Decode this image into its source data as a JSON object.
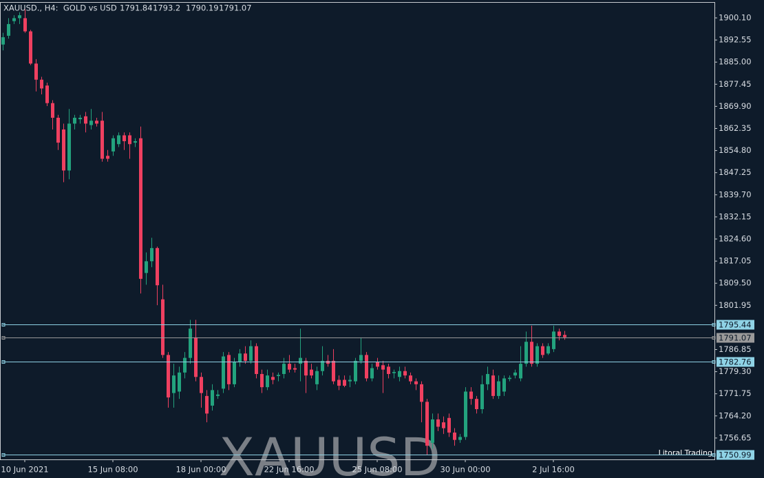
{
  "chart_data": {
    "type": "candlestick",
    "title": "XAUUSD., H4:  GOLD vs USD",
    "watermark": "XAUUSD",
    "credit": "Litoral Trading",
    "up_color": "#23a37e",
    "down_color": "#ef4060",
    "categories": [
      null,
      null,
      null,
      null,
      "10 Jun 2021",
      null,
      null,
      null,
      null,
      null,
      null,
      null,
      null,
      null,
      null,
      null,
      null,
      null,
      null,
      null,
      "15 Jun 08:00",
      null,
      null,
      null,
      null,
      null,
      null,
      null,
      null,
      null,
      null,
      null,
      null,
      null,
      null,
      null,
      "18 Jun 00:00",
      null,
      null,
      null,
      null,
      null,
      null,
      null,
      null,
      null,
      null,
      null,
      null,
      null,
      null,
      null,
      "22 Jun 16:00",
      null,
      null,
      null,
      null,
      null,
      null,
      null,
      null,
      null,
      null,
      null,
      null,
      null,
      null,
      null,
      "25 Jun 08:00",
      null,
      null,
      null,
      null,
      null,
      null,
      null,
      null,
      null,
      null,
      null,
      null,
      null,
      null,
      null,
      "30 Jun 00:00",
      null,
      null,
      null,
      null,
      null,
      null,
      null,
      null,
      null,
      null,
      null,
      null,
      null,
      null,
      null,
      "2 Jul 16:00",
      null,
      null
    ],
    "series": [
      {
        "open": [
          1891,
          1894,
          1899,
          1900,
          1900,
          1895.5,
          1884.5,
          1879,
          1877,
          1871,
          1866,
          1862,
          1848,
          1864,
          1865.5,
          1866.5,
          1863.5,
          1865,
          1865,
          1853,
          1854.5,
          1857,
          1860,
          1860,
          1857.5,
          1859,
          1813,
          1817,
          1821.5,
          1804,
          1785,
          1772,
          1772.5,
          1779,
          1784,
          1791,
          1777.5,
          1771,
          1767.7,
          1771,
          1773.5,
          1785,
          1775,
          1782.5,
          1785.5,
          1783,
          1788,
          1778.5,
          1774,
          1777.5,
          1777.8,
          1778.5,
          1782,
          1780.5,
          1782,
          1783,
          1780,
          1775,
          1779.5,
          1783,
          1783,
          1776.5,
          1776.5,
          1776,
          1776,
          1783,
          1785,
          1777,
          1782.5,
          1781.5,
          1781,
          1778.8,
          1777.5,
          1779.5,
          1778,
          1776,
          1775,
          1769,
          1755,
          1763,
          1762,
          1763.5,
          1758.5,
          1756,
          1757,
          1772.5,
          1770,
          1766.5,
          1775,
          1778,
          1771,
          1772.5,
          1776.8,
          1778,
          1777,
          1782,
          1789.5,
          1782,
          1788,
          1785.5,
          1787,
          1793,
          1791.84
        ],
        "high": [
          1895,
          1900,
          1901,
          1902,
          1903,
          1896,
          1886,
          1880,
          1878,
          1872,
          1867,
          1864,
          1869,
          1867,
          1867,
          1868,
          1869,
          1866,
          1868,
          1855,
          1860,
          1861,
          1861,
          1861,
          1859,
          1863,
          1820,
          1825,
          1822,
          1809,
          1786,
          1782,
          1781,
          1786,
          1797,
          1797,
          1779,
          1773,
          1775,
          1773,
          1786,
          1786,
          1784,
          1787,
          1788,
          1790,
          1789,
          1780,
          1780,
          1779,
          1779,
          1784,
          1785,
          1782,
          1794,
          1784,
          1782,
          1781,
          1788,
          1785,
          1787,
          1778,
          1778,
          1778,
          1784,
          1791,
          1786,
          1782,
          1784,
          1783,
          1782,
          1780,
          1781,
          1781,
          1779,
          1777,
          1776,
          1770,
          1765,
          1765,
          1764,
          1765,
          1760,
          1758,
          1774,
          1774,
          1771,
          1778,
          1781,
          1780,
          1778,
          1778,
          1778,
          1780,
          1788,
          1793,
          1795,
          1789,
          1789,
          1789,
          1795,
          1794,
          1793.2
        ],
        "low": [
          1889,
          1893,
          1898,
          1898,
          1895,
          1884,
          1875,
          1874,
          1870,
          1862,
          1855,
          1844,
          1845,
          1862,
          1864,
          1861,
          1862,
          1863,
          1851,
          1851,
          1853,
          1856,
          1855,
          1852,
          1856,
          1806,
          1809,
          1815,
          1802,
          1784,
          1767,
          1767,
          1770,
          1777,
          1782,
          1776,
          1767,
          1762,
          1766,
          1770,
          1772,
          1773,
          1774,
          1781,
          1782,
          1782,
          1777,
          1772,
          1773,
          1775,
          1776,
          1777,
          1779,
          1779,
          1776,
          1772,
          1777,
          1773,
          1778,
          1781,
          1775,
          1773,
          1774,
          1774,
          1775,
          1782,
          1776,
          1776,
          1780,
          1772,
          1777,
          1777,
          1776,
          1777,
          1775,
          1773,
          1762,
          1751,
          1753,
          1759,
          1758,
          1757,
          1754,
          1755,
          1756,
          1768,
          1765,
          1765,
          1773,
          1770,
          1770,
          1771,
          1776,
          1777,
          1776,
          1781,
          1781,
          1781,
          1784,
          1785,
          1786,
          1790,
          1790.19
        ],
        "close": [
          1893.5,
          1898,
          1900,
          1901,
          1895.5,
          1884.5,
          1879,
          1876,
          1871,
          1866,
          1857.5,
          1848,
          1864,
          1866,
          1866,
          1864,
          1865,
          1864,
          1852,
          1852,
          1859,
          1860,
          1858,
          1857,
          1858,
          1811,
          1817,
          1821.5,
          1808.8,
          1785,
          1770.5,
          1778,
          1779,
          1784,
          1794,
          1777.5,
          1772,
          1765,
          1773,
          1771.5,
          1784.5,
          1775,
          1782.5,
          1785.5,
          1783,
          1788,
          1778.5,
          1774,
          1778,
          1776.5,
          1778.2,
          1782,
          1780,
          1780,
          1784,
          1778,
          1778,
          1779.5,
          1783,
          1782,
          1776,
          1774.5,
          1774.5,
          1776.5,
          1783,
          1785,
          1777,
          1780.5,
          1781,
          1780,
          1778.5,
          1779.2,
          1779.5,
          1778,
          1776,
          1775,
          1769,
          1754,
          1763,
          1760.5,
          1760,
          1758.5,
          1756,
          1757,
          1772.5,
          1770,
          1766.5,
          1775,
          1778.5,
          1771,
          1776,
          1777,
          1777.2,
          1779,
          1782,
          1789.5,
          1782,
          1788,
          1785,
          1788,
          1793,
          1791.5,
          1791.07
        ]
      }
    ],
    "ylim": [
      1749.34,
      1905.27
    ],
    "yticks": [
      {
        "value": 1900.1,
        "label": "1900.10"
      },
      {
        "value": 1892.55,
        "label": "1892.55"
      },
      {
        "value": 1885,
        "label": "1885.00"
      },
      {
        "value": 1877.45,
        "label": "1877.45"
      },
      {
        "value": 1869.9,
        "label": "1869.90"
      },
      {
        "value": 1862.35,
        "label": "1862.35"
      },
      {
        "value": 1854.8,
        "label": "1854.80"
      },
      {
        "value": 1847.25,
        "label": "1847.25"
      },
      {
        "value": 1839.7,
        "label": "1839.70"
      },
      {
        "value": 1832.15,
        "label": "1832.15"
      },
      {
        "value": 1824.6,
        "label": "1824.60"
      },
      {
        "value": 1817.05,
        "label": "1817.05"
      },
      {
        "value": 1809.5,
        "label": "1809.50"
      },
      {
        "value": 1801.95,
        "label": "1801.95"
      },
      {
        "value": 1786.85,
        "label": "1786.85"
      },
      {
        "value": 1779.3,
        "label": "1779.30"
      },
      {
        "value": 1771.75,
        "label": "1771.75"
      },
      {
        "value": 1764.2,
        "label": "1764.20"
      },
      {
        "value": 1756.65,
        "label": "1756.65"
      }
    ],
    "hlines": [
      {
        "value": 1795.44,
        "color": "#8fd3e6"
      },
      {
        "value": 1791.07,
        "color": "#9a9a9a"
      },
      {
        "value": 1782.76,
        "color": "#8fd3e6"
      },
      {
        "value": 1750.99,
        "color": "#8fd3e6"
      }
    ]
  }
}
